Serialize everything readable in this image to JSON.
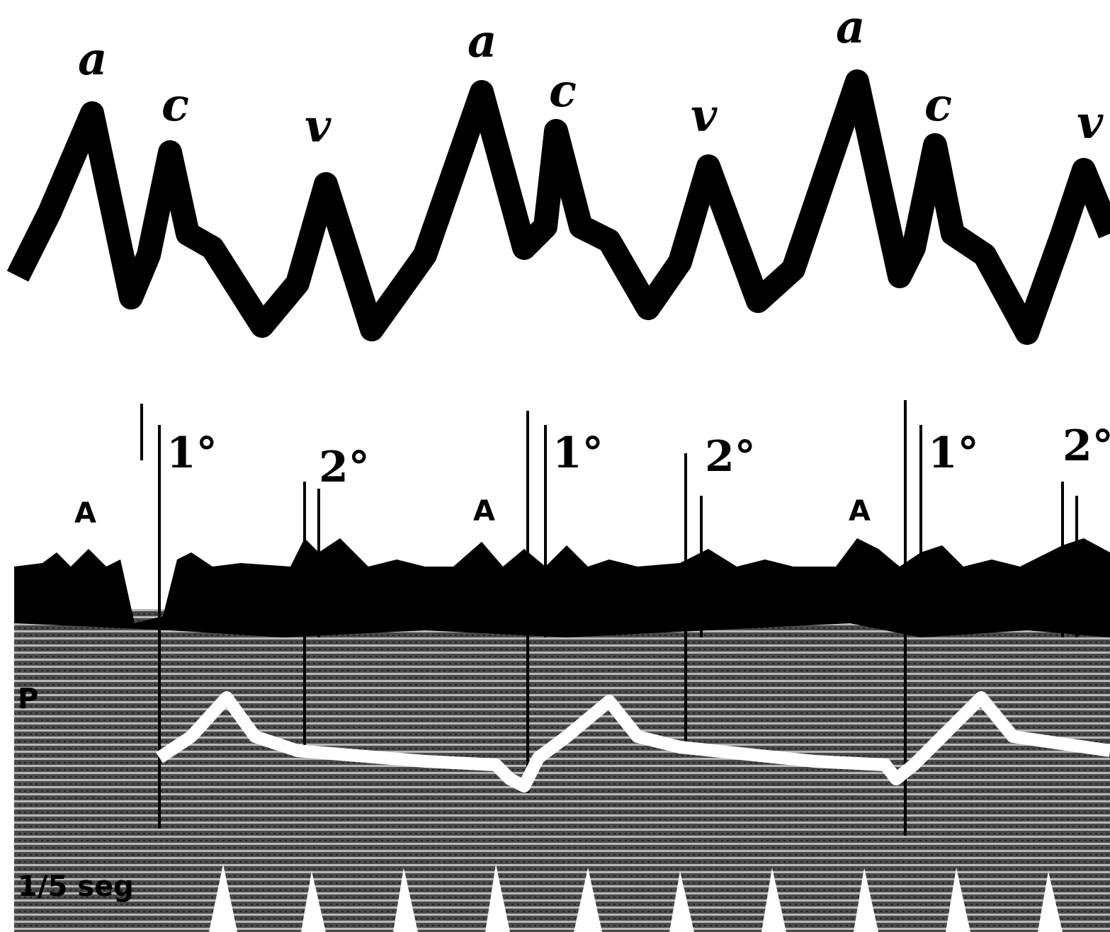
{
  "jugular_trace": {
    "labels": [
      "a",
      "c",
      "v",
      "a",
      "c",
      "v",
      "a",
      "c",
      "v"
    ]
  },
  "heart_sound_trace": {
    "labels": [
      "A",
      "1°",
      "2°",
      "A",
      "1°",
      "2°",
      "A",
      "1°",
      "2°"
    ]
  },
  "ecg_trace": {
    "label": "P"
  },
  "time_marker": {
    "label": "1/5 seg"
  }
}
